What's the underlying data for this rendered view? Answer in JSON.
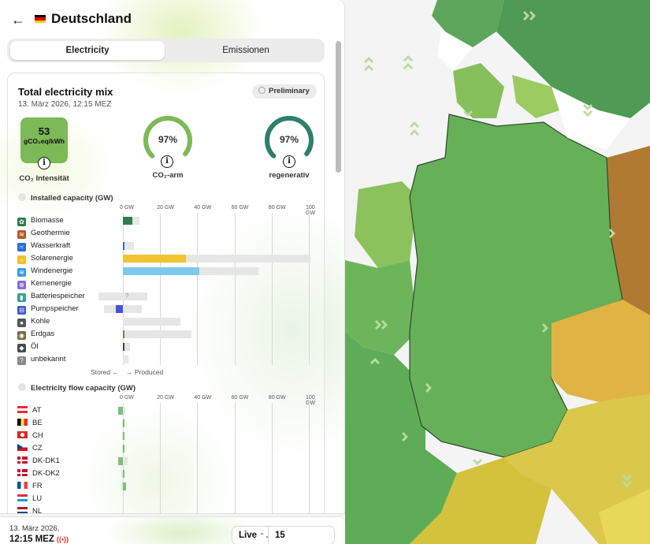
{
  "header": {
    "back_icon": "arrow-left-icon",
    "country": "Deutschland"
  },
  "tabs": [
    {
      "label": "Electricity",
      "active": true
    },
    {
      "label": "Emissionen",
      "active": false
    }
  ],
  "mix": {
    "title": "Total electricity mix",
    "date": "13. März 2026, 12:15 MEZ",
    "badge": "Preliminary",
    "carbon_intensity": {
      "value": "53",
      "unit": "gCO₂eq/kWh",
      "label": "CO₂ Intensität"
    },
    "low_carbon": {
      "value": "97%",
      "label": "CO₂-arm",
      "fraction": 0.97
    },
    "renewable": {
      "value": "97%",
      "label": "regenerativ",
      "fraction": 0.97
    },
    "colors": {
      "intensity": "#7cb957",
      "low_carbon_gauge": "#7cb957",
      "renewable_gauge": "#2f7f6a"
    }
  },
  "capacity": {
    "heading": "Installed capacity (GW)",
    "ticks": [
      "0 GW",
      "20 GW",
      "40 GW",
      "60 GW",
      "80 GW",
      "100 GW"
    ],
    "stored_label": "Stored ←",
    "produced_label": "→ Produced",
    "unknown_marker": "?",
    "sources": [
      {
        "name": "Biomasse",
        "icon": "leaf-icon",
        "icon_color": "#2e7d4f",
        "produced": 5,
        "capacity": 9,
        "bar_color": "#2e7d4f"
      },
      {
        "name": "Geothermie",
        "icon": "geothermal-icon",
        "icon_color": "#b35a2e",
        "produced": 0,
        "capacity": 0,
        "bar_color": "#b35a2e"
      },
      {
        "name": "Wasserkraft",
        "icon": "water-icon",
        "icon_color": "#2b6fd6",
        "produced": 1,
        "capacity": 6,
        "bar_color": "#2b6fd6"
      },
      {
        "name": "Solarenergie",
        "icon": "sun-icon",
        "icon_color": "#f2c029",
        "produced": 34,
        "capacity": 101,
        "bar_color": "#f2c432"
      },
      {
        "name": "Windenergie",
        "icon": "wind-icon",
        "icon_color": "#3c9ee0",
        "produced": 41,
        "capacity": 73,
        "bar_color": "#7ec8ec"
      },
      {
        "name": "Kernenergie",
        "icon": "atom-icon",
        "icon_color": "#8a6ad6",
        "produced": 0,
        "capacity": 0,
        "bar_color": "#8a6ad6"
      },
      {
        "name": "Batteriespeicher",
        "icon": "battery-icon",
        "icon_color": "#3aa08f",
        "produced": 0,
        "capacity": 13,
        "stored_capacity": 13,
        "unknown": true,
        "bar_color": "#3aa08f"
      },
      {
        "name": "Pumpspeicher",
        "icon": "pump-storage-icon",
        "icon_color": "#3f5bd1",
        "produced": 0,
        "stored": 4,
        "capacity": 10,
        "stored_capacity": 10,
        "bar_color": "#4456d4"
      },
      {
        "name": "Kohle",
        "icon": "coal-icon",
        "icon_color": "#555555",
        "produced": 0,
        "capacity": 31,
        "bar_color": "#555555"
      },
      {
        "name": "Erdgas",
        "icon": "gas-icon",
        "icon_color": "#7a6a4a",
        "produced": 1,
        "capacity": 37,
        "bar_color": "#8c7a58"
      },
      {
        "name": "Öl",
        "icon": "oil-icon",
        "icon_color": "#4a4a4a",
        "produced": 0.5,
        "capacity": 4,
        "bar_color": "#444444"
      },
      {
        "name": "unbekannt",
        "icon": "unknown-icon",
        "icon_color": "#888888",
        "produced": 0,
        "capacity": 3,
        "bar_color": "#888888"
      }
    ]
  },
  "flow": {
    "heading": "Electricity flow capacity (GW)",
    "ticks": [
      "0 GW",
      "20 GW",
      "40 GW",
      "60 GW",
      "80 GW",
      "100 GW"
    ],
    "zones": [
      {
        "code": "AT",
        "flag": "flag-at",
        "import": 2.5,
        "export": 0,
        "capacity": 2.5
      },
      {
        "code": "BE",
        "flag": "flag-be",
        "import": 0,
        "export": 1,
        "capacity": 1
      },
      {
        "code": "CH",
        "flag": "flag-ch",
        "import": 0,
        "export": 1,
        "capacity": 1
      },
      {
        "code": "CZ",
        "flag": "flag-cz",
        "import": 0,
        "export": 1,
        "capacity": 1
      },
      {
        "code": "DK-DK1",
        "flag": "flag-dk",
        "import": 2.5,
        "export": 0,
        "capacity": 5
      },
      {
        "code": "DK-DK2",
        "flag": "flag-dk",
        "import": 0,
        "export": 1,
        "capacity": 1.5
      },
      {
        "code": "FR",
        "flag": "flag-fr",
        "import": 0,
        "export": 1.5,
        "capacity": 1.5
      },
      {
        "code": "LU",
        "flag": "flag-lu",
        "import": 0,
        "export": 0,
        "capacity": 0
      },
      {
        "code": "NL",
        "flag": "flag-nl",
        "import": 0,
        "export": 0,
        "capacity": 0
      }
    ]
  },
  "footer": {
    "date": "13. März 2026,",
    "time": "12:15 MEZ",
    "live_icon": "broadcast-icon",
    "mode": "Live",
    "resolution": "15 minutes",
    "chevron_icon": "chevron-up-down-icon"
  }
}
